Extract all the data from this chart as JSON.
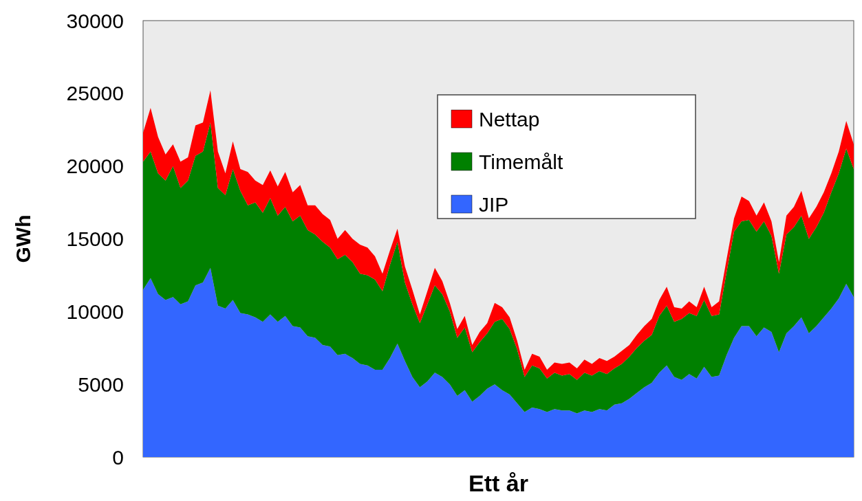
{
  "chart_data": {
    "type": "area",
    "stacked": true,
    "xlabel": "Ett år",
    "ylabel": "GWh",
    "ylim": [
      0,
      30000
    ],
    "yticks": [
      0,
      5000,
      10000,
      15000,
      20000,
      25000,
      30000
    ],
    "legend": "top right",
    "grid": false,
    "categories": [
      null,
      null,
      null,
      null,
      null,
      null,
      null,
      null,
      null,
      null,
      null,
      null,
      null,
      null,
      null,
      null,
      null,
      null,
      null,
      null,
      null,
      null,
      null,
      null,
      null,
      null,
      null,
      null,
      null,
      null,
      null,
      null,
      null,
      null,
      null,
      null,
      null,
      null,
      null,
      null,
      null,
      null,
      null,
      null,
      null,
      null,
      null,
      null,
      null,
      null,
      null,
      null,
      null,
      null,
      null,
      null,
      null,
      null,
      null,
      null,
      null,
      null,
      null,
      null,
      null,
      null,
      null,
      null,
      null,
      null,
      null,
      null,
      null,
      null,
      null,
      null,
      null,
      null,
      null,
      null,
      null,
      null,
      null,
      null,
      null,
      null,
      null,
      null,
      null,
      null,
      null,
      null,
      null,
      null,
      null,
      null
    ],
    "series": [
      {
        "name": "JIP",
        "color": "#3366ff",
        "values": [
          11500,
          12300,
          11200,
          10800,
          11000,
          10500,
          10700,
          11800,
          12000,
          13000,
          10400,
          10200,
          10800,
          9900,
          9800,
          9600,
          9300,
          9800,
          9300,
          9700,
          9000,
          8900,
          8300,
          8200,
          7700,
          7600,
          7000,
          7100,
          6800,
          6400,
          6300,
          6000,
          6000,
          6800,
          7800,
          6600,
          5500,
          4800,
          5200,
          5800,
          5500,
          5000,
          4200,
          4600,
          3800,
          4200,
          4700,
          5000,
          4600,
          4300,
          3700,
          3100,
          3400,
          3300,
          3100,
          3300,
          3200,
          3200,
          3000,
          3200,
          3100,
          3300,
          3200,
          3600,
          3700,
          4000,
          4400,
          4800,
          5100,
          5800,
          6300,
          5500,
          5300,
          5700,
          5400,
          6200,
          5500,
          5600,
          7000,
          8200,
          9000,
          9000,
          8300,
          8900,
          8600,
          7200,
          8500,
          9000,
          9600,
          8500,
          9000,
          9600,
          10200,
          10900,
          11900,
          11000
        ]
      },
      {
        "name": "Timemålt",
        "color": "#008000",
        "values": [
          8800,
          8700,
          8300,
          8200,
          9000,
          8000,
          8300,
          8900,
          9000,
          10000,
          8100,
          7800,
          9000,
          8400,
          7500,
          7900,
          7500,
          8000,
          7300,
          7500,
          7200,
          7700,
          7300,
          7100,
          7100,
          6800,
          6600,
          6800,
          6600,
          6200,
          6200,
          6200,
          5400,
          6400,
          7000,
          5400,
          5000,
          4400,
          5300,
          6000,
          5700,
          5000,
          4000,
          4300,
          3400,
          3700,
          3800,
          4300,
          4900,
          4500,
          3700,
          2400,
          2900,
          2800,
          2300,
          2500,
          2400,
          2500,
          2300,
          2600,
          2500,
          2600,
          2500,
          2500,
          2700,
          2900,
          3100,
          3200,
          3300,
          3900,
          4100,
          3800,
          4200,
          4200,
          4300,
          4600,
          4200,
          4200,
          5700,
          7300,
          7200,
          7300,
          7200,
          7300,
          6600,
          5400,
          6800,
          6800,
          7000,
          6500,
          6800,
          7200,
          8000,
          8600,
          9300,
          8800
        ]
      },
      {
        "name": "Nettap",
        "color": "#ff0000",
        "values": [
          2000,
          3000,
          2500,
          1800,
          1500,
          1800,
          1600,
          2100,
          2000,
          2200,
          2500,
          1500,
          1900,
          1500,
          2300,
          1500,
          1900,
          1900,
          2000,
          2400,
          2000,
          2100,
          1700,
          2000,
          1900,
          1900,
          1400,
          1700,
          1600,
          2000,
          1900,
          1600,
          1200,
          1000,
          900,
          1100,
          1000,
          600,
          900,
          1200,
          900,
          600,
          600,
          800,
          500,
          700,
          700,
          1300,
          800,
          800,
          600,
          500,
          800,
          800,
          600,
          700,
          800,
          800,
          800,
          900,
          800,
          900,
          900,
          800,
          900,
          800,
          900,
          1000,
          1100,
          1100,
          1300,
          1000,
          700,
          800,
          600,
          900,
          600,
          900,
          900,
          900,
          1700,
          1300,
          1100,
          1300,
          1000,
          800,
          1300,
          1400,
          1700,
          1400,
          1400,
          1400,
          1300,
          1500,
          1900,
          1700
        ]
      }
    ]
  }
}
